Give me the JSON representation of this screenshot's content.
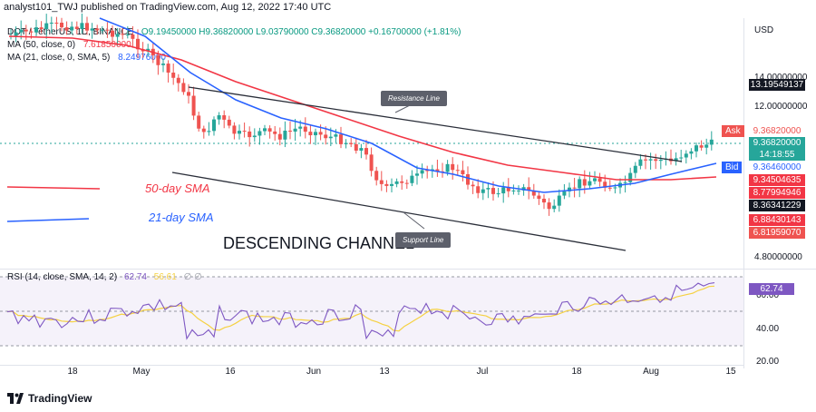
{
  "header": {
    "text": "analyst101_TWJ published on TradingView.com, Aug 12, 2022 17:40 UTC"
  },
  "legend": {
    "symbol": "DOT / TetherUS, 1D, BINANCE",
    "ohlc": "O9.19450000 H9.36820000 L9.03790000 C9.36820000 +0.16700000 (+1.81%)",
    "ma50_label": "MA (50, close, 0)",
    "ma50_value": "7.61850000",
    "ma21_label": "MA (21, close, 0, SMA, 5)",
    "ma21_value": "8.24976000"
  },
  "rsi_legend": {
    "label": "RSI (14, close, SMA, 14, 2)",
    "value": "62.74",
    "ma_value": "56.61",
    "extra": "∅  ∅"
  },
  "currency": "USD",
  "price_axis": {
    "labels": [
      "14.00000000",
      "12.00000000",
      "4.80000000"
    ]
  },
  "rsi_axis": {
    "labels": [
      "60.00",
      "40.00",
      "20.00"
    ]
  },
  "badges": {
    "high": "13.19549137",
    "ask_label": "Ask",
    "ask": "9.36820000",
    "last": "9.36820000",
    "countdown": "14:18:55",
    "bid_label": "Bid",
    "bid": "9.36460000",
    "ma50": "9.34504635",
    "ma21": "8.77994946",
    "level1": "8.36341229",
    "level2": "6.88430143",
    "level3": "6.81959070"
  },
  "x_axis": {
    "labels": [
      "18",
      "May",
      "16",
      "Jun",
      "13",
      "Jul",
      "18",
      "Aug",
      "15"
    ]
  },
  "annotations": {
    "sma50": "50-day SMA",
    "sma21": "21-day SMA",
    "channel": "DESCENDING CHANNEL",
    "resistance": "Resistance Line",
    "support": "Support Line"
  },
  "colors": {
    "up": "#26a69a",
    "down": "#ef5350",
    "ma50": "#f23645",
    "ma21": "#2962ff",
    "rsi": "#7e57c2",
    "rsi_ma": "#f5d142",
    "trendline": "#2a2e39"
  },
  "footer": {
    "brand": "TradingView"
  }
}
